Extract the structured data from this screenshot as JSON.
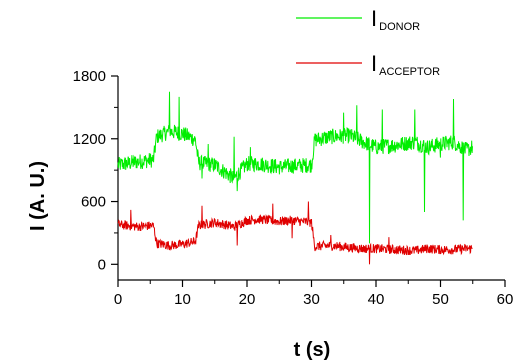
{
  "chart_data": {
    "type": "line",
    "title": "",
    "xlabel": "t (s)",
    "ylabel": "I (A. U.)",
    "xlim": [
      0,
      60
    ],
    "ylim": [
      -150,
      1800
    ],
    "x_ticks": [
      0,
      10,
      20,
      30,
      40,
      50,
      60
    ],
    "y_ticks": [
      0,
      600,
      1200,
      1800
    ],
    "x_tick_labels": [
      "0",
      "10",
      "20",
      "30",
      "40",
      "50",
      "60"
    ],
    "y_tick_labels": [
      "0",
      "600",
      "1200",
      "1800"
    ],
    "grid": false,
    "legend_position": "top-right",
    "series": [
      {
        "name_main": "I",
        "name_sub": "DONOR",
        "color": "#00ee00",
        "x": [
          0,
          3,
          5.5,
          6,
          8,
          10,
          12,
          12.5,
          15,
          18,
          20,
          22,
          25,
          27,
          30,
          30.5,
          33,
          36,
          38,
          40,
          43,
          46,
          48,
          50,
          52,
          54,
          55
        ],
        "y": [
          950,
          980,
          1000,
          1220,
          1270,
          1250,
          1190,
          970,
          950,
          820,
          960,
          960,
          930,
          940,
          950,
          1190,
          1220,
          1230,
          1170,
          1120,
          1140,
          1170,
          1120,
          1150,
          1170,
          1090,
          1120
        ],
        "spikes_down": [
          [
            8,
            830
          ],
          [
            13,
            820
          ],
          [
            18.5,
            700
          ],
          [
            39,
            200
          ],
          [
            47.5,
            500
          ],
          [
            53.5,
            420
          ],
          [
            50,
            1020
          ]
        ],
        "spikes_up": [
          [
            8,
            1650
          ],
          [
            9.5,
            1600
          ],
          [
            14,
            1150
          ],
          [
            18,
            1220
          ],
          [
            20.5,
            1120
          ],
          [
            35,
            1450
          ],
          [
            37,
            1520
          ],
          [
            41,
            1480
          ],
          [
            46,
            1480
          ],
          [
            52,
            1580
          ]
        ]
      },
      {
        "name_main": "I",
        "name_sub": "ACCEPTOR",
        "color": "#e00000",
        "x": [
          0,
          3,
          5.5,
          6,
          8,
          10,
          12,
          12.5,
          15,
          18,
          20,
          22,
          25,
          27,
          30,
          30.5,
          33,
          36,
          38,
          40,
          43,
          46,
          48,
          50,
          52,
          54,
          55
        ],
        "y": [
          380,
          360,
          370,
          200,
          180,
          190,
          220,
          370,
          400,
          360,
          420,
          430,
          410,
          420,
          400,
          170,
          180,
          160,
          150,
          150,
          140,
          130,
          150,
          140,
          140,
          150,
          150
        ],
        "spikes_down": [
          [
            39,
            0
          ],
          [
            18.5,
            180
          ],
          [
            27,
            250
          ]
        ],
        "spikes_up": [
          [
            2,
            520
          ],
          [
            13,
            560
          ],
          [
            24,
            580
          ],
          [
            29.5,
            600
          ],
          [
            33,
            280
          ],
          [
            42,
            260
          ]
        ]
      }
    ]
  }
}
